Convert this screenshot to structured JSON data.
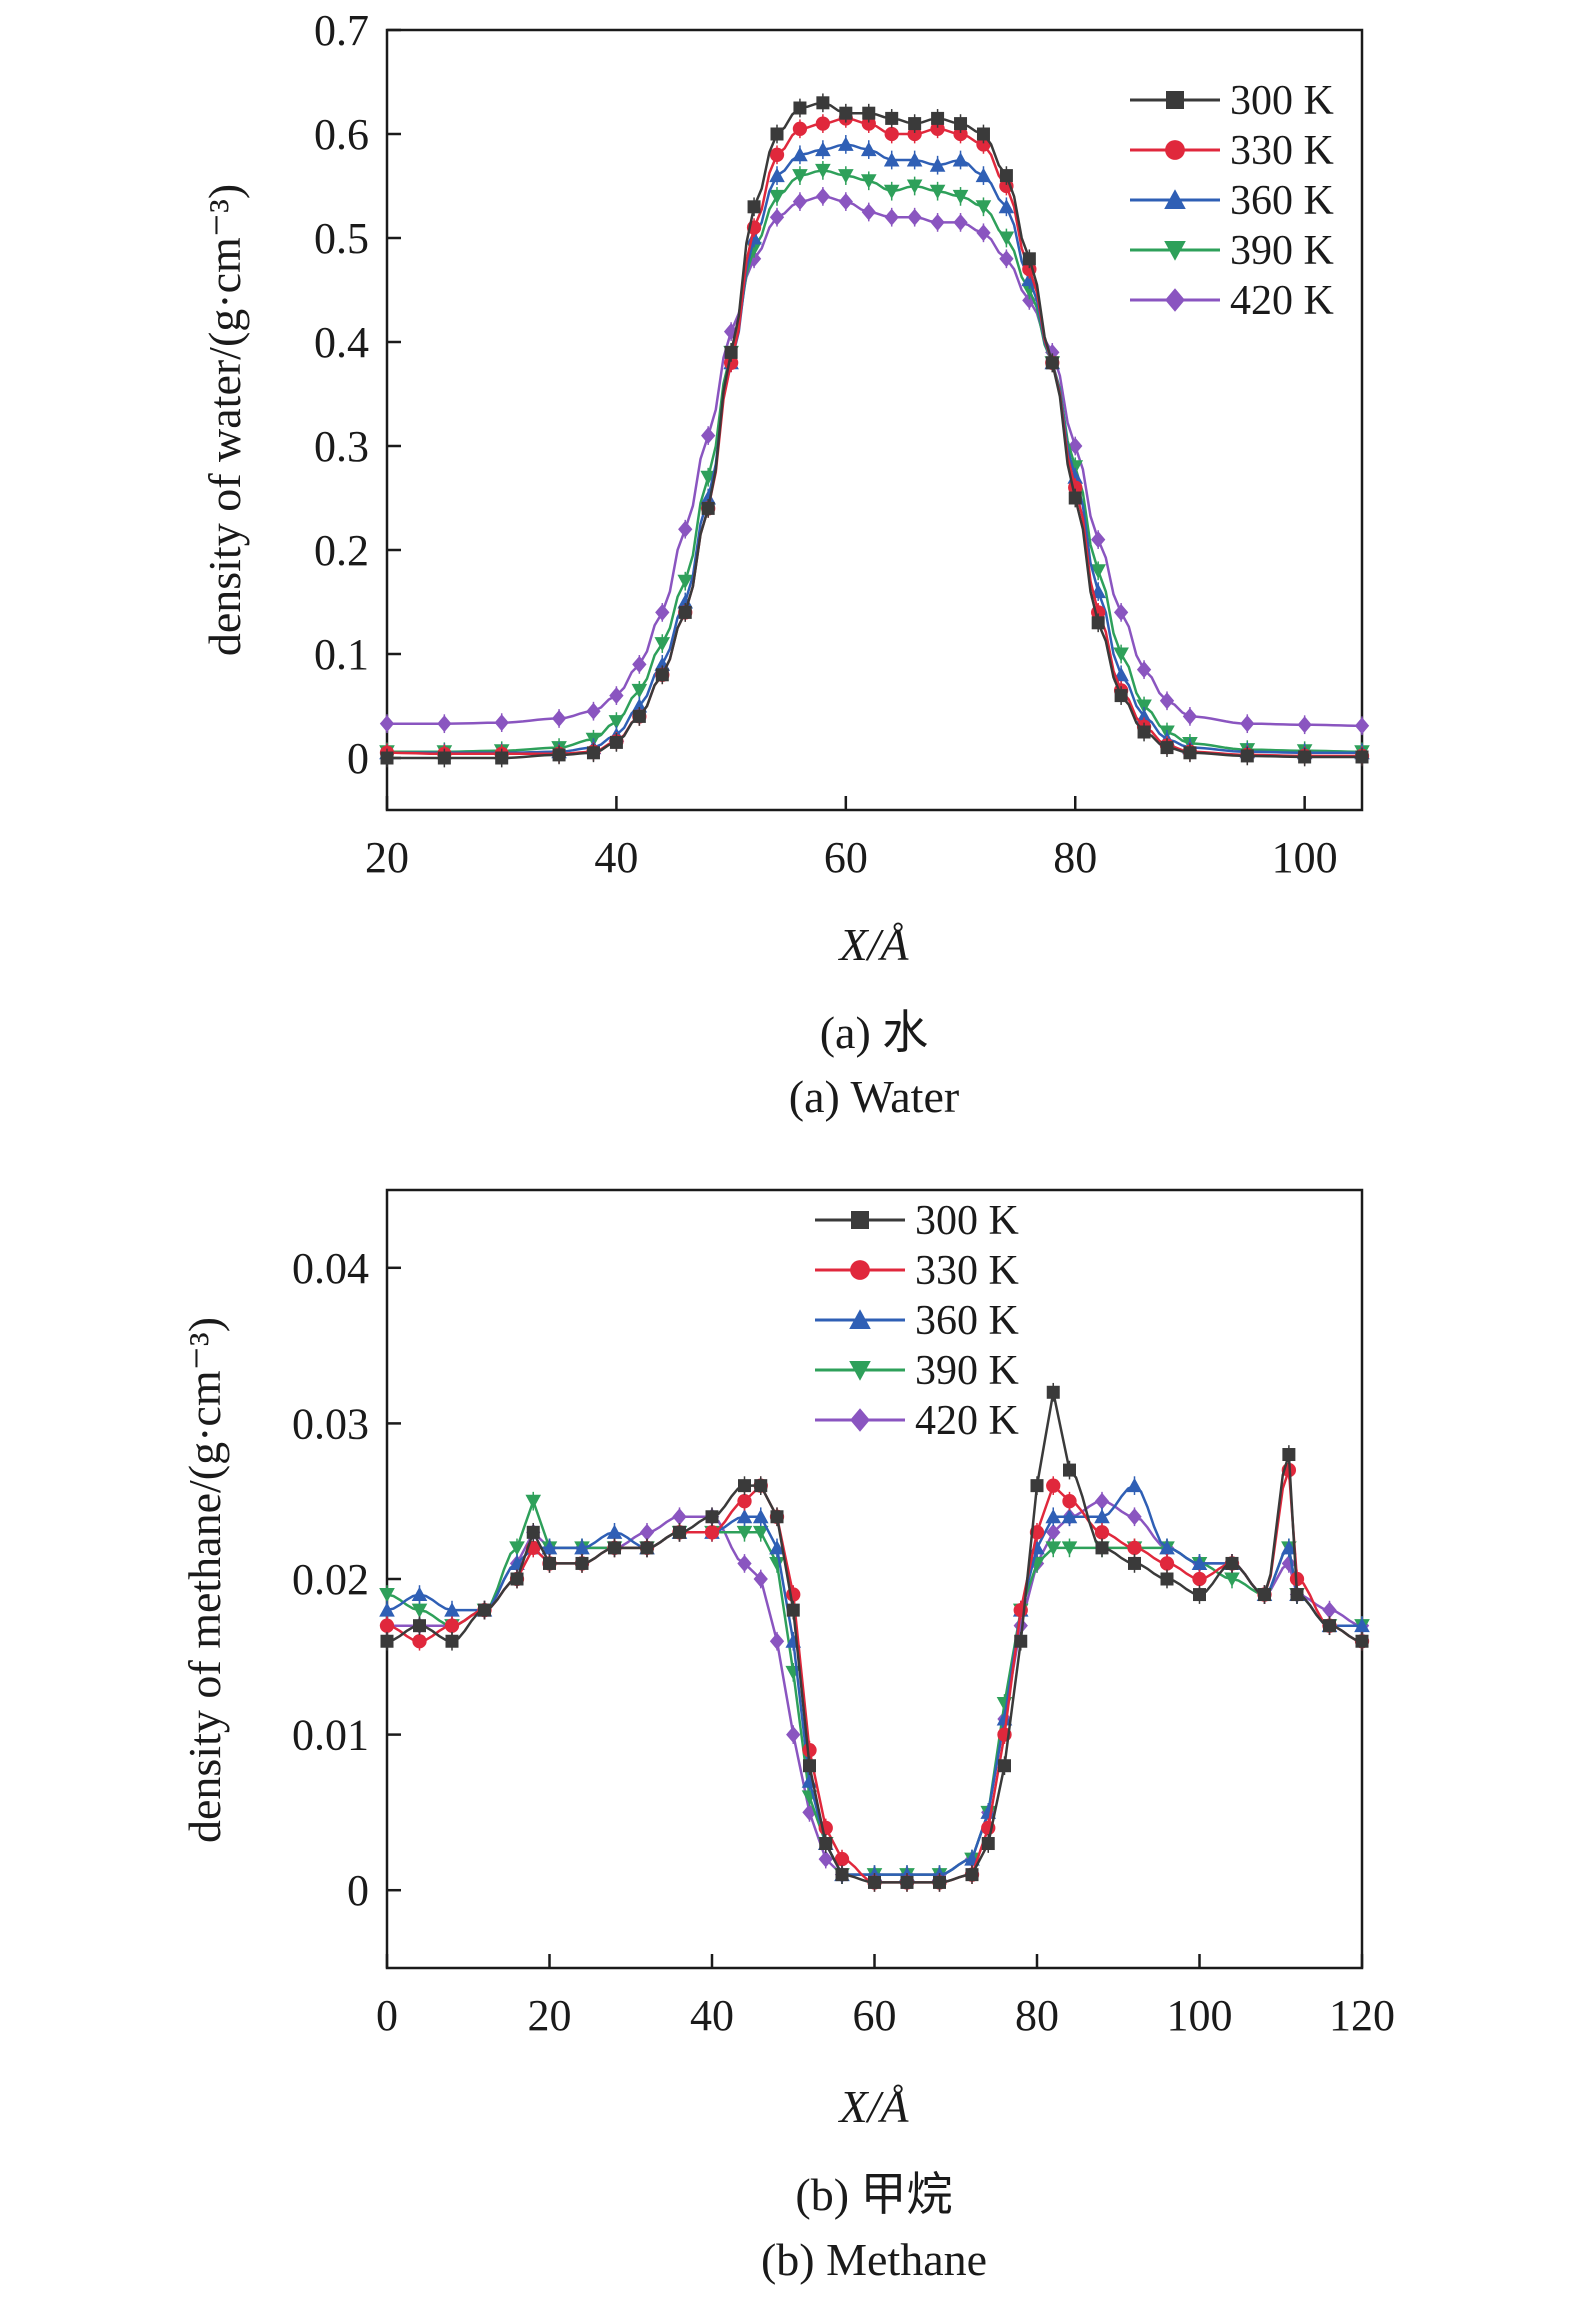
{
  "colors": {
    "300 K": "#3a3a3a",
    "330 K": "#e0283c",
    "360 K": "#2f5fb5",
    "390 K": "#2ea05a",
    "420 K": "#8a55c0"
  },
  "chart_data": [
    {
      "type": "line",
      "ylabel": "density of water/(g·cm⁻³)",
      "xlabel": "X/Å",
      "xlim": [
        20,
        105
      ],
      "ylim": [
        -0.05,
        0.7
      ],
      "xticks": [
        20,
        40,
        60,
        80,
        100
      ],
      "xtick_labels": [
        "20",
        "40",
        "60",
        "80",
        "100"
      ],
      "yticks": [
        0,
        0.1,
        0.2,
        0.3,
        0.4,
        0.5,
        0.6,
        0.7
      ],
      "ytick_labels": [
        "0",
        "0.1",
        "0.2",
        "0.3",
        "0.4",
        "0.5",
        "0.6",
        "0.7"
      ],
      "legend_position": "top-right",
      "caption_cn": "(a) 水",
      "caption_en": "(a) Water",
      "x": [
        20,
        25,
        30,
        35,
        38,
        40,
        42,
        44,
        46,
        48,
        50,
        52,
        54,
        56,
        58,
        60,
        62,
        64,
        66,
        68,
        70,
        72,
        74,
        76,
        78,
        80,
        82,
        84,
        86,
        88,
        90,
        95,
        100,
        105
      ],
      "series": [
        {
          "name": "300 K",
          "marker": "square",
          "values": [
            0.0,
            0.0,
            0.0,
            0.003,
            0.005,
            0.015,
            0.04,
            0.08,
            0.14,
            0.24,
            0.39,
            0.53,
            0.6,
            0.625,
            0.63,
            0.62,
            0.62,
            0.615,
            0.61,
            0.615,
            0.61,
            0.6,
            0.56,
            0.48,
            0.38,
            0.25,
            0.13,
            0.06,
            0.025,
            0.01,
            0.005,
            0.002,
            0.001,
            0.001
          ]
        },
        {
          "name": "330 K",
          "marker": "circle",
          "values": [
            0.005,
            0.004,
            0.004,
            0.004,
            0.006,
            0.016,
            0.04,
            0.08,
            0.14,
            0.24,
            0.38,
            0.51,
            0.58,
            0.605,
            0.61,
            0.615,
            0.61,
            0.6,
            0.6,
            0.605,
            0.6,
            0.59,
            0.55,
            0.47,
            0.38,
            0.26,
            0.14,
            0.065,
            0.03,
            0.012,
            0.006,
            0.003,
            0.002,
            0.002
          ]
        },
        {
          "name": "360 K",
          "marker": "triangle-up",
          "values": [
            0.005,
            0.005,
            0.005,
            0.006,
            0.01,
            0.022,
            0.05,
            0.09,
            0.15,
            0.25,
            0.38,
            0.5,
            0.56,
            0.58,
            0.585,
            0.59,
            0.585,
            0.575,
            0.575,
            0.57,
            0.575,
            0.56,
            0.53,
            0.46,
            0.38,
            0.27,
            0.16,
            0.08,
            0.04,
            0.018,
            0.01,
            0.006,
            0.005,
            0.005
          ]
        },
        {
          "name": "390 K",
          "marker": "triangle-down",
          "values": [
            0.006,
            0.006,
            0.007,
            0.01,
            0.018,
            0.035,
            0.065,
            0.11,
            0.17,
            0.27,
            0.39,
            0.49,
            0.54,
            0.56,
            0.565,
            0.56,
            0.555,
            0.545,
            0.55,
            0.545,
            0.54,
            0.53,
            0.5,
            0.45,
            0.38,
            0.28,
            0.18,
            0.1,
            0.05,
            0.025,
            0.014,
            0.008,
            0.007,
            0.006
          ]
        },
        {
          "name": "420 K",
          "marker": "diamond",
          "values": [
            0.033,
            0.033,
            0.034,
            0.038,
            0.045,
            0.06,
            0.09,
            0.14,
            0.22,
            0.31,
            0.41,
            0.48,
            0.52,
            0.535,
            0.54,
            0.535,
            0.525,
            0.52,
            0.52,
            0.515,
            0.515,
            0.505,
            0.48,
            0.44,
            0.39,
            0.3,
            0.21,
            0.14,
            0.085,
            0.055,
            0.04,
            0.033,
            0.032,
            0.031
          ]
        }
      ]
    },
    {
      "type": "line",
      "ylabel": "density of methane/(g·cm⁻³)",
      "xlabel": "X/Å",
      "xlim": [
        0,
        120
      ],
      "ylim": [
        -0.005,
        0.045
      ],
      "xticks": [
        0,
        20,
        40,
        60,
        80,
        100,
        120
      ],
      "xtick_labels": [
        "0",
        "20",
        "40",
        "60",
        "80",
        "100",
        "120"
      ],
      "yticks": [
        0,
        0.01,
        0.02,
        0.03,
        0.04
      ],
      "ytick_labels": [
        "0",
        "0.01",
        "0.02",
        "0.03",
        "0.04"
      ],
      "legend_position": "top-center",
      "caption_cn": "(b) 甲烷",
      "caption_en": "(b) Methane",
      "x": [
        0,
        4,
        8,
        12,
        16,
        18,
        20,
        24,
        28,
        32,
        36,
        40,
        44,
        46,
        48,
        50,
        52,
        54,
        56,
        60,
        64,
        68,
        72,
        74,
        76,
        78,
        80,
        82,
        84,
        88,
        92,
        96,
        100,
        104,
        108,
        111,
        112,
        116,
        120
      ],
      "series": [
        {
          "name": "300 K",
          "marker": "square",
          "values": [
            0.016,
            0.017,
            0.016,
            0.018,
            0.02,
            0.023,
            0.021,
            0.021,
            0.022,
            0.022,
            0.023,
            0.024,
            0.026,
            0.026,
            0.024,
            0.018,
            0.008,
            0.003,
            0.001,
            0.0005,
            0.0005,
            0.0005,
            0.001,
            0.003,
            0.008,
            0.016,
            0.026,
            0.032,
            0.027,
            0.022,
            0.021,
            0.02,
            0.019,
            0.021,
            0.019,
            0.028,
            0.019,
            0.017,
            0.016
          ]
        },
        {
          "name": "330 K",
          "marker": "circle",
          "values": [
            0.017,
            0.016,
            0.017,
            0.018,
            0.02,
            0.022,
            0.021,
            0.021,
            0.022,
            0.022,
            0.023,
            0.023,
            0.025,
            0.026,
            0.024,
            0.019,
            0.009,
            0.004,
            0.002,
            0.0005,
            0.0005,
            0.0005,
            0.001,
            0.004,
            0.01,
            0.018,
            0.023,
            0.026,
            0.025,
            0.023,
            0.022,
            0.021,
            0.02,
            0.021,
            0.019,
            0.027,
            0.02,
            0.017,
            0.016
          ]
        },
        {
          "name": "360 K",
          "marker": "triangle-up",
          "values": [
            0.018,
            0.019,
            0.018,
            0.018,
            0.021,
            0.022,
            0.022,
            0.022,
            0.023,
            0.022,
            0.023,
            0.023,
            0.024,
            0.024,
            0.022,
            0.016,
            0.007,
            0.003,
            0.001,
            0.001,
            0.001,
            0.001,
            0.002,
            0.005,
            0.011,
            0.018,
            0.022,
            0.024,
            0.024,
            0.024,
            0.026,
            0.022,
            0.021,
            0.021,
            0.019,
            0.022,
            0.019,
            0.017,
            0.017
          ]
        },
        {
          "name": "390 K",
          "marker": "triangle-down",
          "values": [
            0.019,
            0.018,
            0.017,
            0.018,
            0.022,
            0.025,
            0.022,
            0.022,
            0.022,
            0.022,
            0.023,
            0.023,
            0.023,
            0.023,
            0.021,
            0.014,
            0.006,
            0.003,
            0.001,
            0.001,
            0.001,
            0.001,
            0.002,
            0.005,
            0.012,
            0.018,
            0.021,
            0.022,
            0.022,
            0.022,
            0.022,
            0.022,
            0.021,
            0.02,
            0.019,
            0.022,
            0.019,
            0.017,
            0.017
          ]
        },
        {
          "name": "420 K",
          "marker": "diamond",
          "values": [
            0.017,
            0.017,
            0.017,
            0.018,
            0.021,
            0.023,
            0.022,
            0.022,
            0.022,
            0.023,
            0.024,
            0.024,
            0.021,
            0.02,
            0.016,
            0.01,
            0.005,
            0.002,
            0.001,
            0.001,
            0.001,
            0.001,
            0.002,
            0.005,
            0.011,
            0.017,
            0.021,
            0.023,
            0.024,
            0.025,
            0.024,
            0.022,
            0.021,
            0.021,
            0.019,
            0.021,
            0.019,
            0.018,
            0.017
          ]
        }
      ]
    }
  ]
}
